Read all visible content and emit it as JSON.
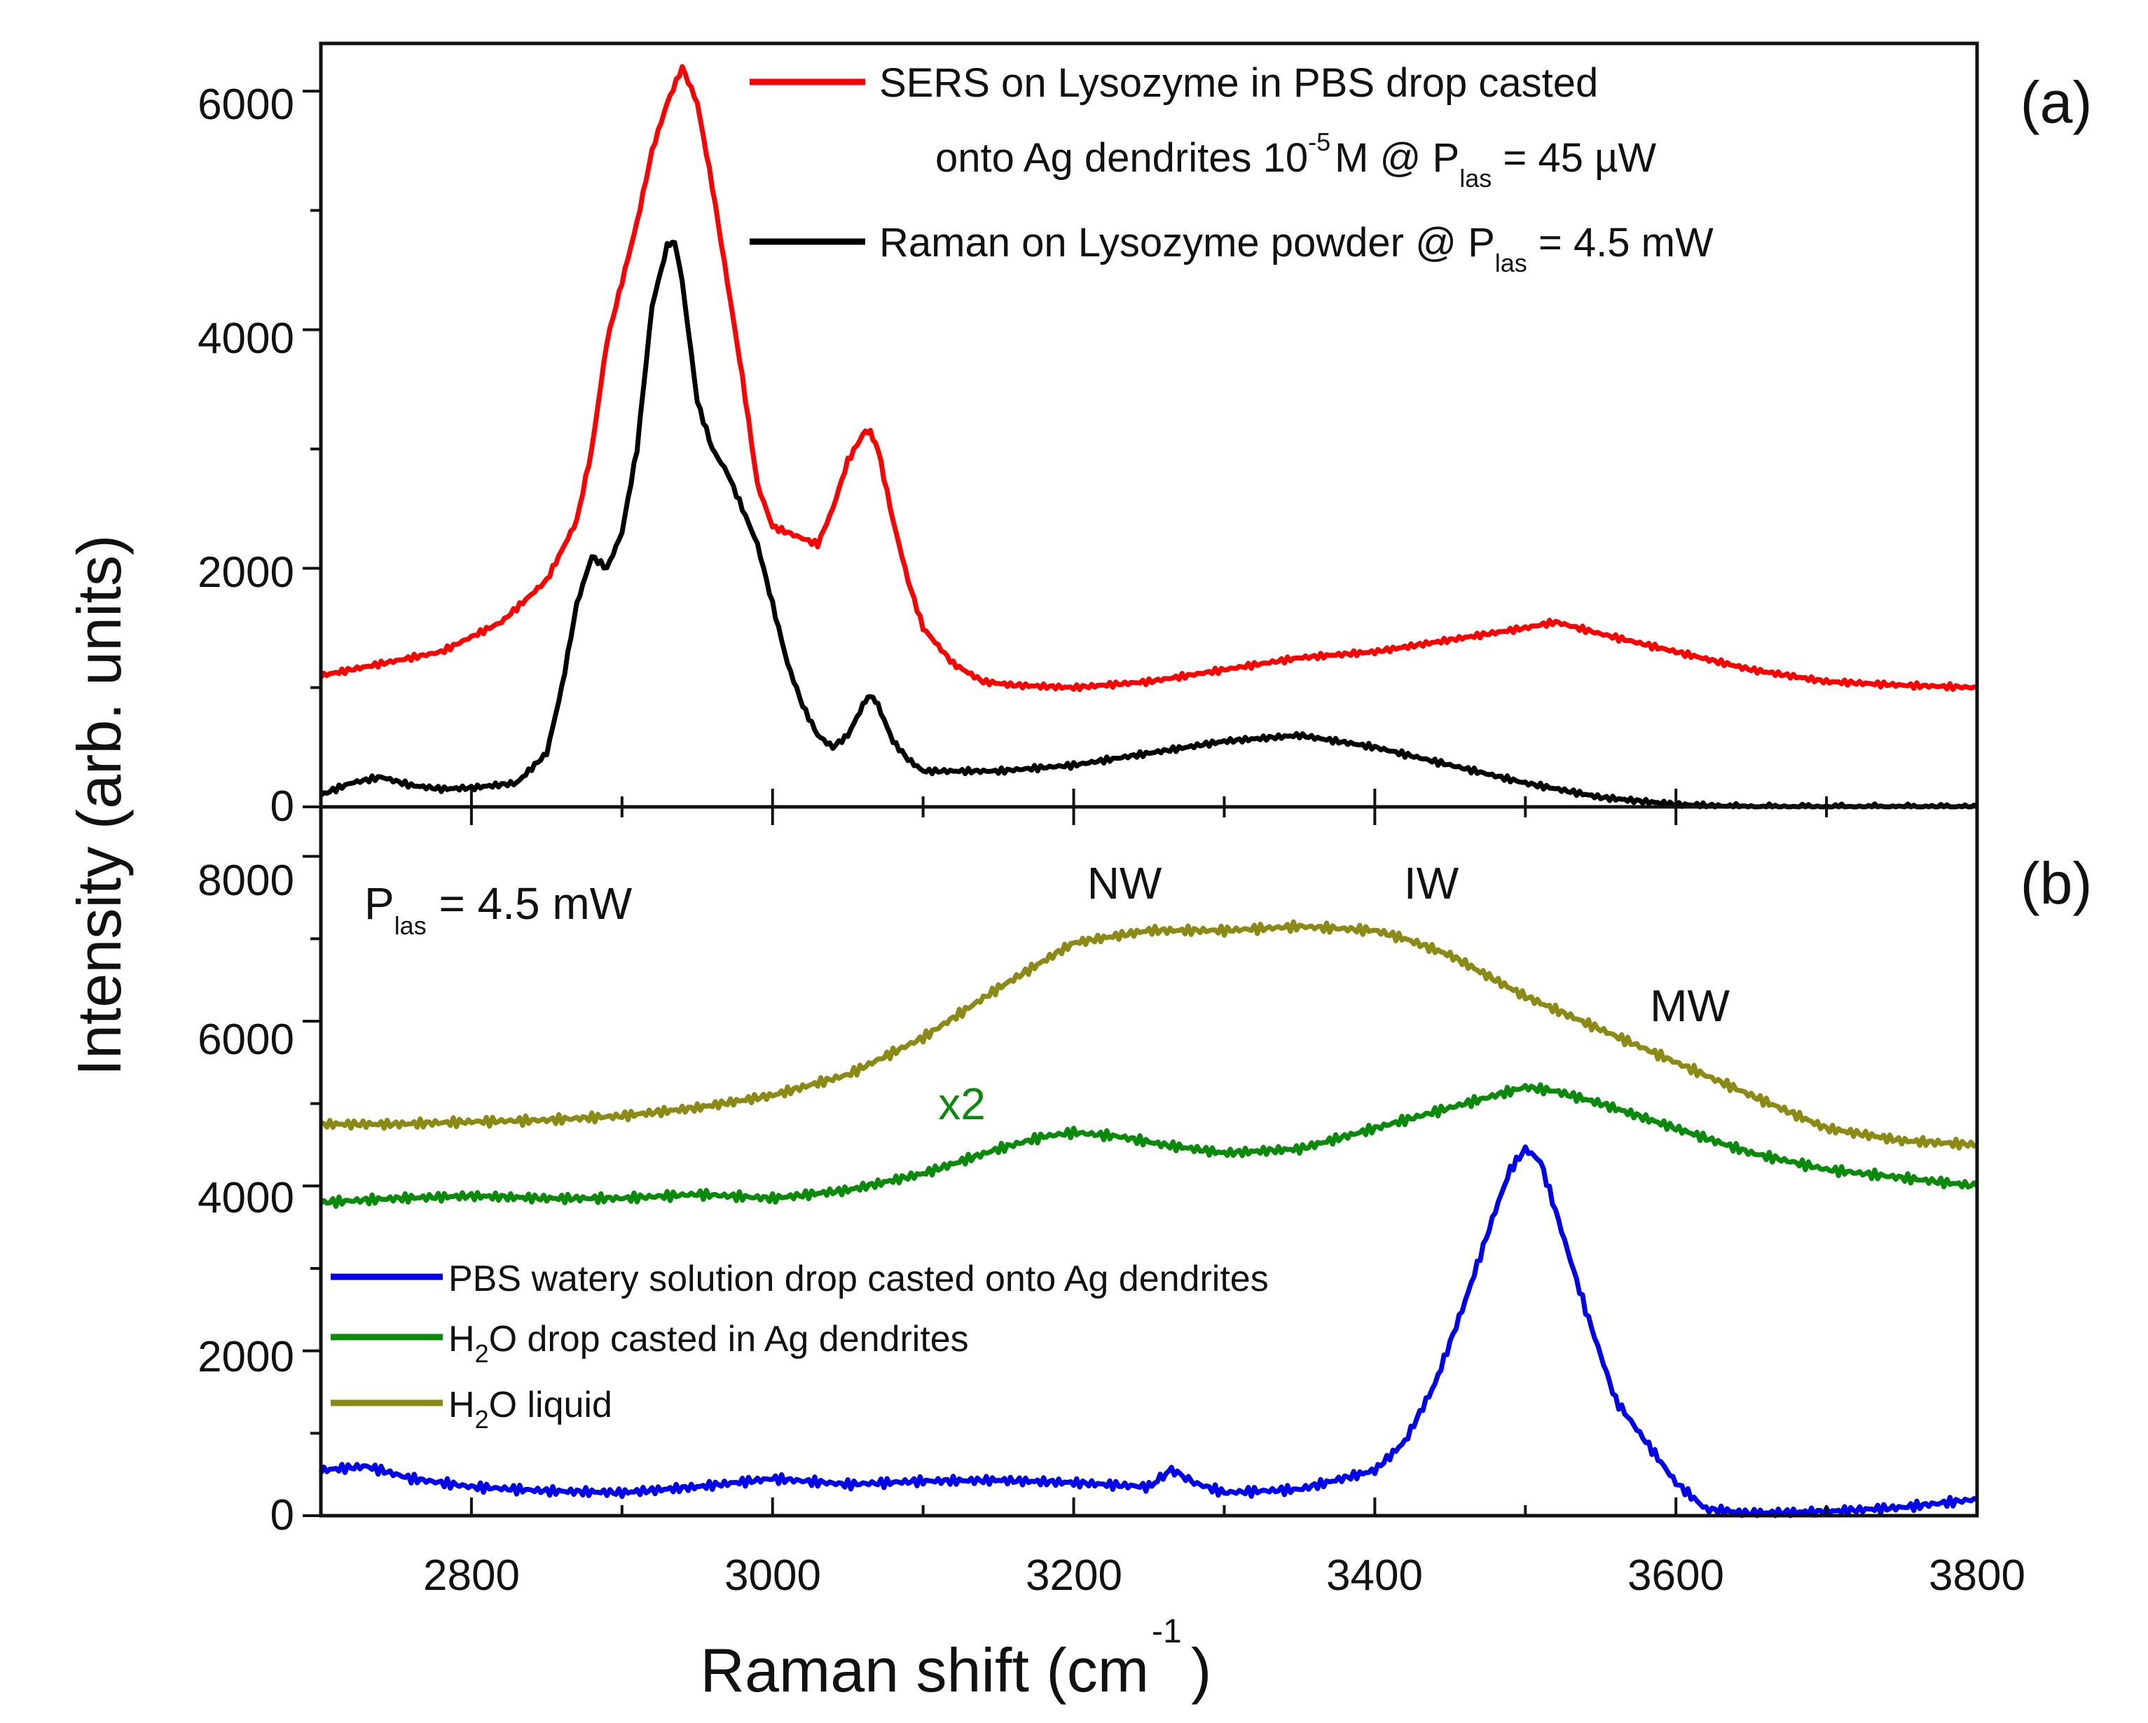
{
  "chart_data": [
    {
      "type": "line",
      "panel_label": "(a)",
      "xlim": [
        2700,
        3800
      ],
      "ylim": [
        0,
        6400
      ],
      "xlabel": "",
      "ylabel": "Intensity (arb. units)",
      "yticks": [
        0,
        2000,
        4000,
        6000
      ],
      "series": [
        {
          "name": "SERS on Lysozyme in PBS drop casted onto Ag dendrites 10^-5 M @ P_las = 45 µW",
          "color": "#ff0000",
          "x": [
            2700,
            2740,
            2780,
            2820,
            2850,
            2870,
            2880,
            2890,
            2900,
            2910,
            2920,
            2930,
            2940,
            2950,
            2960,
            2970,
            2980,
            2990,
            3000,
            3010,
            3020,
            3030,
            3040,
            3050,
            3060,
            3065,
            3070,
            3080,
            3090,
            3100,
            3120,
            3140,
            3160,
            3200,
            3250,
            3300,
            3350,
            3400,
            3450,
            3500,
            3520,
            3550,
            3600,
            3650,
            3700,
            3750,
            3800
          ],
          "y": [
            1100,
            1200,
            1300,
            1550,
            1900,
            2400,
            3000,
            3900,
            4400,
            4900,
            5500,
            5900,
            6200,
            5900,
            5200,
            4400,
            3600,
            2700,
            2350,
            2300,
            2250,
            2200,
            2500,
            2900,
            3120,
            3150,
            3000,
            2400,
            1900,
            1500,
            1200,
            1050,
            1020,
            1000,
            1050,
            1150,
            1250,
            1300,
            1400,
            1500,
            1550,
            1450,
            1300,
            1150,
            1050,
            1020,
            1000
          ]
        },
        {
          "name": "Raman on Lysozyme powder @ P_las = 4.5 mW",
          "color": "#000000",
          "x": [
            2700,
            2720,
            2740,
            2760,
            2780,
            2800,
            2830,
            2850,
            2860,
            2870,
            2880,
            2890,
            2900,
            2910,
            2920,
            2930,
            2935,
            2940,
            2950,
            2960,
            2970,
            2980,
            2990,
            3000,
            3010,
            3020,
            3030,
            3040,
            3050,
            3060,
            3065,
            3070,
            3080,
            3090,
            3100,
            3150,
            3200,
            3250,
            3300,
            3350,
            3400,
            3450,
            3500,
            3550,
            3600,
            3650,
            3700,
            3750,
            3800
          ],
          "y": [
            100,
            200,
            250,
            180,
            150,
            160,
            200,
            450,
            1000,
            1700,
            2100,
            2000,
            2300,
            3000,
            4200,
            4700,
            4750,
            4400,
            3400,
            3000,
            2800,
            2500,
            2200,
            1700,
            1200,
            850,
            600,
            500,
            600,
            850,
            950,
            850,
            550,
            400,
            300,
            300,
            350,
            450,
            550,
            600,
            500,
            350,
            200,
            80,
            20,
            0,
            0,
            0,
            0
          ]
        }
      ]
    },
    {
      "type": "line",
      "panel_label": "(b)",
      "xlim": [
        2700,
        3800
      ],
      "ylim": [
        0,
        8600
      ],
      "xlabel": "Raman shift (cm^-1)",
      "ylabel": "Intensity (arb. units)",
      "xticks": [
        2800,
        3000,
        3200,
        3400,
        3600,
        3800
      ],
      "yticks": [
        0,
        2000,
        4000,
        6000,
        8000
      ],
      "series": [
        {
          "name": "PBS watery solution drop casted onto Ag dendrites",
          "color": "#0000ee",
          "x": [
            2700,
            2730,
            2760,
            2800,
            2850,
            2900,
            2950,
            3000,
            3050,
            3100,
            3150,
            3200,
            3250,
            3265,
            3280,
            3300,
            3350,
            3400,
            3420,
            3440,
            3460,
            3480,
            3490,
            3500,
            3510,
            3520,
            3540,
            3560,
            3580,
            3600,
            3620,
            3650,
            3700,
            3750,
            3800
          ],
          "y": [
            550,
            600,
            450,
            350,
            300,
            280,
            350,
            450,
            380,
            420,
            430,
            400,
            350,
            560,
            400,
            280,
            320,
            550,
            900,
            1600,
            2600,
            3700,
            4200,
            4450,
            4300,
            3700,
            2500,
            1400,
            900,
            400,
            80,
            30,
            50,
            100,
            200
          ]
        },
        {
          "name": "H2O drop casted in Ag dendrites",
          "color": "#0a8a0a",
          "x": [
            2700,
            2750,
            2800,
            2850,
            2900,
            2950,
            3000,
            3050,
            3100,
            3150,
            3180,
            3200,
            3230,
            3260,
            3300,
            3350,
            3400,
            3450,
            3500,
            3520,
            3550,
            3600,
            3650,
            3700,
            3750,
            3800
          ],
          "y": [
            3800,
            3850,
            3880,
            3850,
            3850,
            3900,
            3850,
            3950,
            4150,
            4450,
            4600,
            4650,
            4600,
            4500,
            4400,
            4450,
            4700,
            4950,
            5200,
            5150,
            5000,
            4700,
            4400,
            4200,
            4100,
            4000
          ]
        },
        {
          "name": "H2O liquid",
          "color": "#8a8a14",
          "x": [
            2700,
            2750,
            2800,
            2850,
            2900,
            2950,
            3000,
            3050,
            3100,
            3150,
            3200,
            3250,
            3300,
            3350,
            3400,
            3420,
            3450,
            3500,
            3550,
            3600,
            3650,
            3700,
            3750,
            3800
          ],
          "y": [
            4750,
            4750,
            4780,
            4800,
            4850,
            4950,
            5100,
            5350,
            5800,
            6400,
            6950,
            7100,
            7100,
            7150,
            7100,
            7000,
            6800,
            6300,
            5900,
            5500,
            5100,
            4700,
            4550,
            4500
          ]
        }
      ]
    }
  ],
  "labels": {
    "y_axis_title": "Intensity (arb. units)",
    "x_axis_title_main": "Raman shift (cm",
    "x_axis_title_sup": "-1",
    "x_axis_title_close": ")",
    "panel_a": "(a)",
    "panel_b": "(b)",
    "x_ticks": [
      "2800",
      "3000",
      "3200",
      "3400",
      "3600",
      "3800"
    ],
    "a_y_ticks": [
      "0",
      "2000",
      "4000",
      "6000"
    ],
    "b_y_ticks": [
      "0",
      "2000",
      "4000",
      "6000",
      "8000"
    ],
    "legend_a": {
      "sers_line1": "SERS on Lysozyme in PBS drop casted",
      "sers_line2_pre": "onto Ag dendrites  10",
      "sers_line2_sup": "-5",
      "sers_line2_mid": "M @ P",
      "sers_line2_sub": "las",
      "sers_line2_post": " = 45 µW",
      "raman_pre": "Raman on Lysozyme powder @ P",
      "raman_sub": "las",
      "raman_post": " = 4.5 mW"
    },
    "legend_b": {
      "pbs": "PBS watery solution drop casted onto Ag dendrites",
      "h2o_drop_pre": "H",
      "h2o_drop_sub": "2",
      "h2o_drop_post": "O drop casted in Ag dendrites",
      "h2o_liquid_pre": "H",
      "h2o_liquid_sub": "2",
      "h2o_liquid_post": "O liquid"
    },
    "plas_pre": "P",
    "plas_sub": "las",
    "plas_post": " = 4.5 mW",
    "nw": "NW",
    "iw": "IW",
    "mw": "MW",
    "x2": "x2"
  }
}
